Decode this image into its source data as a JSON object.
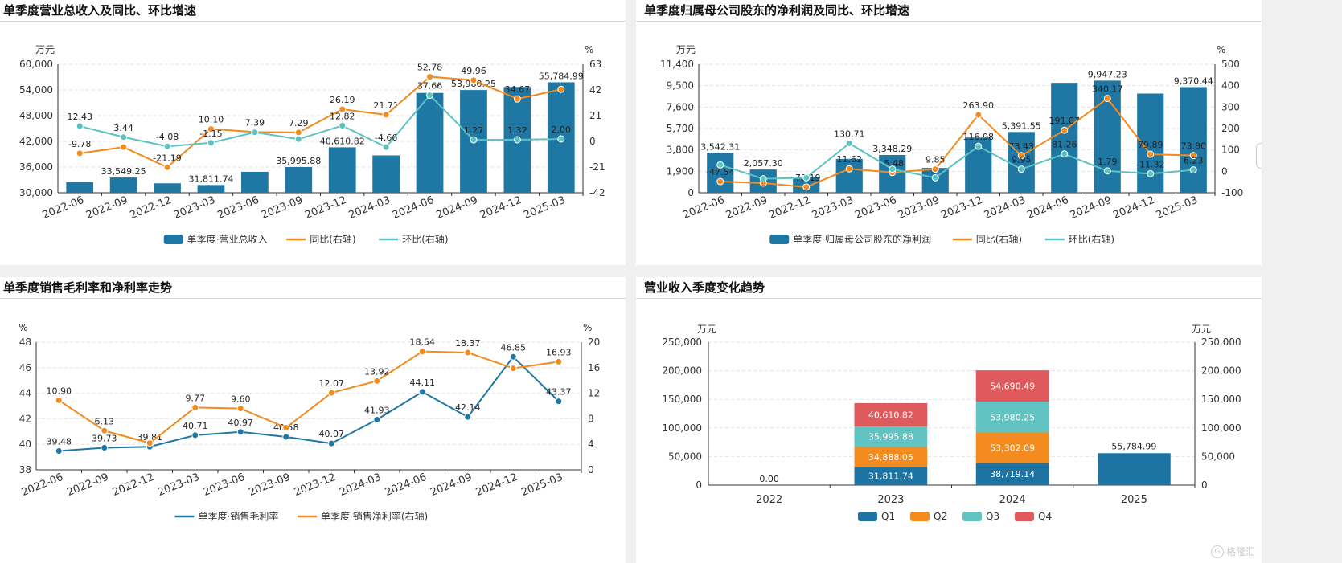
{
  "colors": {
    "bar": "#1f77a4",
    "orange": "#f28b1e",
    "teal": "#5cc2c2",
    "q1": "#1d74a2",
    "q2": "#f38b1f",
    "q3": "#62c3c3",
    "q4": "#df5a5d",
    "grid": "#e3e3e3",
    "axis": "#333"
  },
  "watermark": {
    "text": "格隆汇",
    "icon": "G"
  },
  "chart_data": [
    {
      "id": "c1",
      "type": "bar+line",
      "title": "单季度营业总收入及同比、环比增速",
      "left_unit": "万元",
      "right_unit": "%",
      "categories": [
        "2022-06",
        "2022-09",
        "2022-12",
        "2023-03",
        "2023-06",
        "2023-09",
        "2023-12",
        "2024-03",
        "2024-06",
        "2024-09",
        "2024-12",
        "2025-03"
      ],
      "ylim_left": [
        30000,
        60000
      ],
      "yticks_left": [
        30000,
        36000,
        42000,
        48000,
        54000,
        60000
      ],
      "yticks_left_labels": [
        "30,000",
        "36,000",
        "42,000",
        "48,000",
        "54,000",
        "60,000"
      ],
      "ylim_right": [
        -42,
        63
      ],
      "yticks_right": [
        -42,
        -21,
        0,
        21,
        42,
        63
      ],
      "bars": {
        "name": "单季度·营业总收入",
        "values": [
          32500,
          33549.25,
          32200,
          31811.74,
          34888.05,
          35995.88,
          40610.82,
          38719.14,
          53302.09,
          53980.25,
          54690.49,
          55784.99
        ],
        "labels": [
          "",
          "33,549.25",
          "",
          "31,811.74",
          "",
          "35,995.88",
          "40,610.82",
          "",
          "",
          "53,980.25",
          "",
          "55,784.99"
        ]
      },
      "lines": [
        {
          "name": "同比(右轴)",
          "color": "orange",
          "values": [
            -9.78,
            -4.7,
            -21.19,
            10.1,
            7.6,
            7.29,
            26.19,
            21.71,
            52.78,
            49.96,
            34.67,
            42.5
          ],
          "labels": [
            "-9.78",
            "",
            "-21.19",
            "10.10",
            "",
            "7.29",
            "26.19",
            "21.71",
            "52.78",
            "49.96",
            "34.67",
            ""
          ]
        },
        {
          "name": "环比(右轴)",
          "color": "teal",
          "values": [
            12.43,
            3.44,
            -4.08,
            -1.15,
            7.39,
            1.8,
            12.82,
            -4.66,
            37.66,
            1.27,
            1.32,
            2.0
          ],
          "labels": [
            "12.43",
            "3.44",
            "-4.08",
            "-1.15",
            "7.39",
            "",
            "12.82",
            "-4.66",
            "37.66",
            "1.27",
            "1.32",
            "2.00"
          ]
        }
      ]
    },
    {
      "id": "c2",
      "type": "bar+line",
      "title": "单季度归属母公司股东的净利润及同比、环比增速",
      "left_unit": "万元",
      "right_unit": "%",
      "categories": [
        "2022-06",
        "2022-09",
        "2022-12",
        "2023-03",
        "2023-06",
        "2023-09",
        "2023-12",
        "2024-03",
        "2024-06",
        "2024-09",
        "2024-12",
        "2025-03"
      ],
      "ylim_left": [
        0,
        11400
      ],
      "yticks_left": [
        0,
        1900,
        3800,
        5700,
        7600,
        9500,
        11400
      ],
      "yticks_left_labels": [
        "0",
        "1,900",
        "3,800",
        "5,700",
        "7,600",
        "9,500",
        "11,400"
      ],
      "ylim_right": [
        -100,
        500
      ],
      "yticks_right": [
        -100,
        0,
        100,
        200,
        300,
        400,
        500
      ],
      "bars": {
        "name": "单季度·归属母公司股东的净利润",
        "values": [
          3542.31,
          2057.3,
          1400,
          3000,
          3348.29,
          2200,
          4900,
          5391.55,
          9750,
          9947.23,
          8800,
          9370.44
        ],
        "labels": [
          "3,542.31",
          "2,057.30",
          "",
          "",
          "3,348.29",
          "",
          "",
          "5,391.55",
          "",
          "9,947.23",
          "",
          "9,370.44"
        ]
      },
      "lines": [
        {
          "name": "同比(右轴)",
          "color": "orange",
          "values": [
            -47.54,
            -55,
            -73.19,
            11.62,
            -5.48,
            9.85,
            263.9,
            73.43,
            191.87,
            340.17,
            79.89,
            73.8
          ],
          "labels": [
            "-47.54",
            "",
            "-73.19",
            "11.62",
            "-5.48",
            "9.85",
            "263.90",
            "73.43",
            "191.87",
            "340.17",
            "79.89",
            "73.80"
          ]
        },
        {
          "name": "环比(右轴)",
          "color": "teal",
          "values": [
            30,
            -35,
            -30,
            130.71,
            10,
            -30,
            116.98,
            9.95,
            81.26,
            1.79,
            -11.32,
            6.23
          ],
          "labels": [
            "",
            "",
            "",
            "130.71",
            "",
            "",
            "116.98",
            "9.95",
            "81.26",
            "1.79",
            "-11.32",
            "6.23"
          ]
        }
      ]
    },
    {
      "id": "c3",
      "type": "line",
      "title": "单季度销售毛利率和净利率走势",
      "left_unit": "%",
      "right_unit": "%",
      "categories": [
        "2022-06",
        "2022-09",
        "2022-12",
        "2023-03",
        "2023-06",
        "2023-09",
        "2023-12",
        "2024-03",
        "2024-06",
        "2024-09",
        "2024-12",
        "2025-03"
      ],
      "ylim_left": [
        38,
        48
      ],
      "yticks_left": [
        38,
        40,
        42,
        44,
        46,
        48
      ],
      "ylim_right": [
        0,
        20
      ],
      "yticks_right": [
        0,
        4,
        8,
        12,
        16,
        20
      ],
      "lines": [
        {
          "name": "单季度·销售毛利率",
          "color": "bar",
          "axis": "left",
          "values": [
            39.48,
            39.73,
            39.81,
            40.71,
            40.97,
            40.58,
            40.07,
            41.93,
            44.11,
            42.14,
            46.85,
            43.37
          ],
          "labels": [
            "39.48",
            "39.73",
            "39.81",
            "40.71",
            "40.97",
            "40.58",
            "40.07",
            "41.93",
            "44.11",
            "42.14",
            "46.85",
            "43.37"
          ]
        },
        {
          "name": "单季度·销售净利率(右轴)",
          "color": "orange",
          "axis": "right",
          "values": [
            10.9,
            6.13,
            4.2,
            9.77,
            9.6,
            6.6,
            12.07,
            13.92,
            18.54,
            18.37,
            15.9,
            16.93
          ],
          "labels": [
            "10.90",
            "6.13",
            "",
            "9.77",
            "9.60",
            "",
            "12.07",
            "13.92",
            "18.54",
            "18.37",
            "",
            "16.93"
          ]
        }
      ]
    },
    {
      "id": "c4",
      "type": "stacked-bar",
      "title": "营业收入季度变化趋势",
      "left_unit": "万元",
      "right_unit": "万元",
      "categories": [
        "2022",
        "2023",
        "2024",
        "2025"
      ],
      "ylim": [
        0,
        250000
      ],
      "yticks": [
        0,
        50000,
        100000,
        150000,
        200000,
        250000
      ],
      "yticks_labels": [
        "0",
        "50,000",
        "100,000",
        "150,000",
        "200,000",
        "250,000"
      ],
      "series": [
        {
          "name": "Q1",
          "color": "q1",
          "values": [
            0,
            31811.74,
            38719.14,
            55784.99
          ],
          "labels": [
            "",
            "31,811.74",
            "38,719.14",
            "55,784.99"
          ]
        },
        {
          "name": "Q2",
          "color": "q2",
          "values": [
            0,
            34888.05,
            53302.09,
            0
          ],
          "labels": [
            "",
            "34,888.05",
            "53,302.09",
            ""
          ]
        },
        {
          "name": "Q3",
          "color": "q3",
          "values": [
            0,
            35995.88,
            53980.25,
            0
          ],
          "labels": [
            "",
            "35,995.88",
            "53,980.25",
            ""
          ]
        },
        {
          "name": "Q4",
          "color": "q4",
          "values": [
            0,
            40610.82,
            54690.49,
            0
          ],
          "labels": [
            "",
            "40,610.82",
            "54,690.49",
            ""
          ]
        }
      ],
      "top_labels": [
        "0.00",
        "",
        "",
        ""
      ]
    }
  ]
}
